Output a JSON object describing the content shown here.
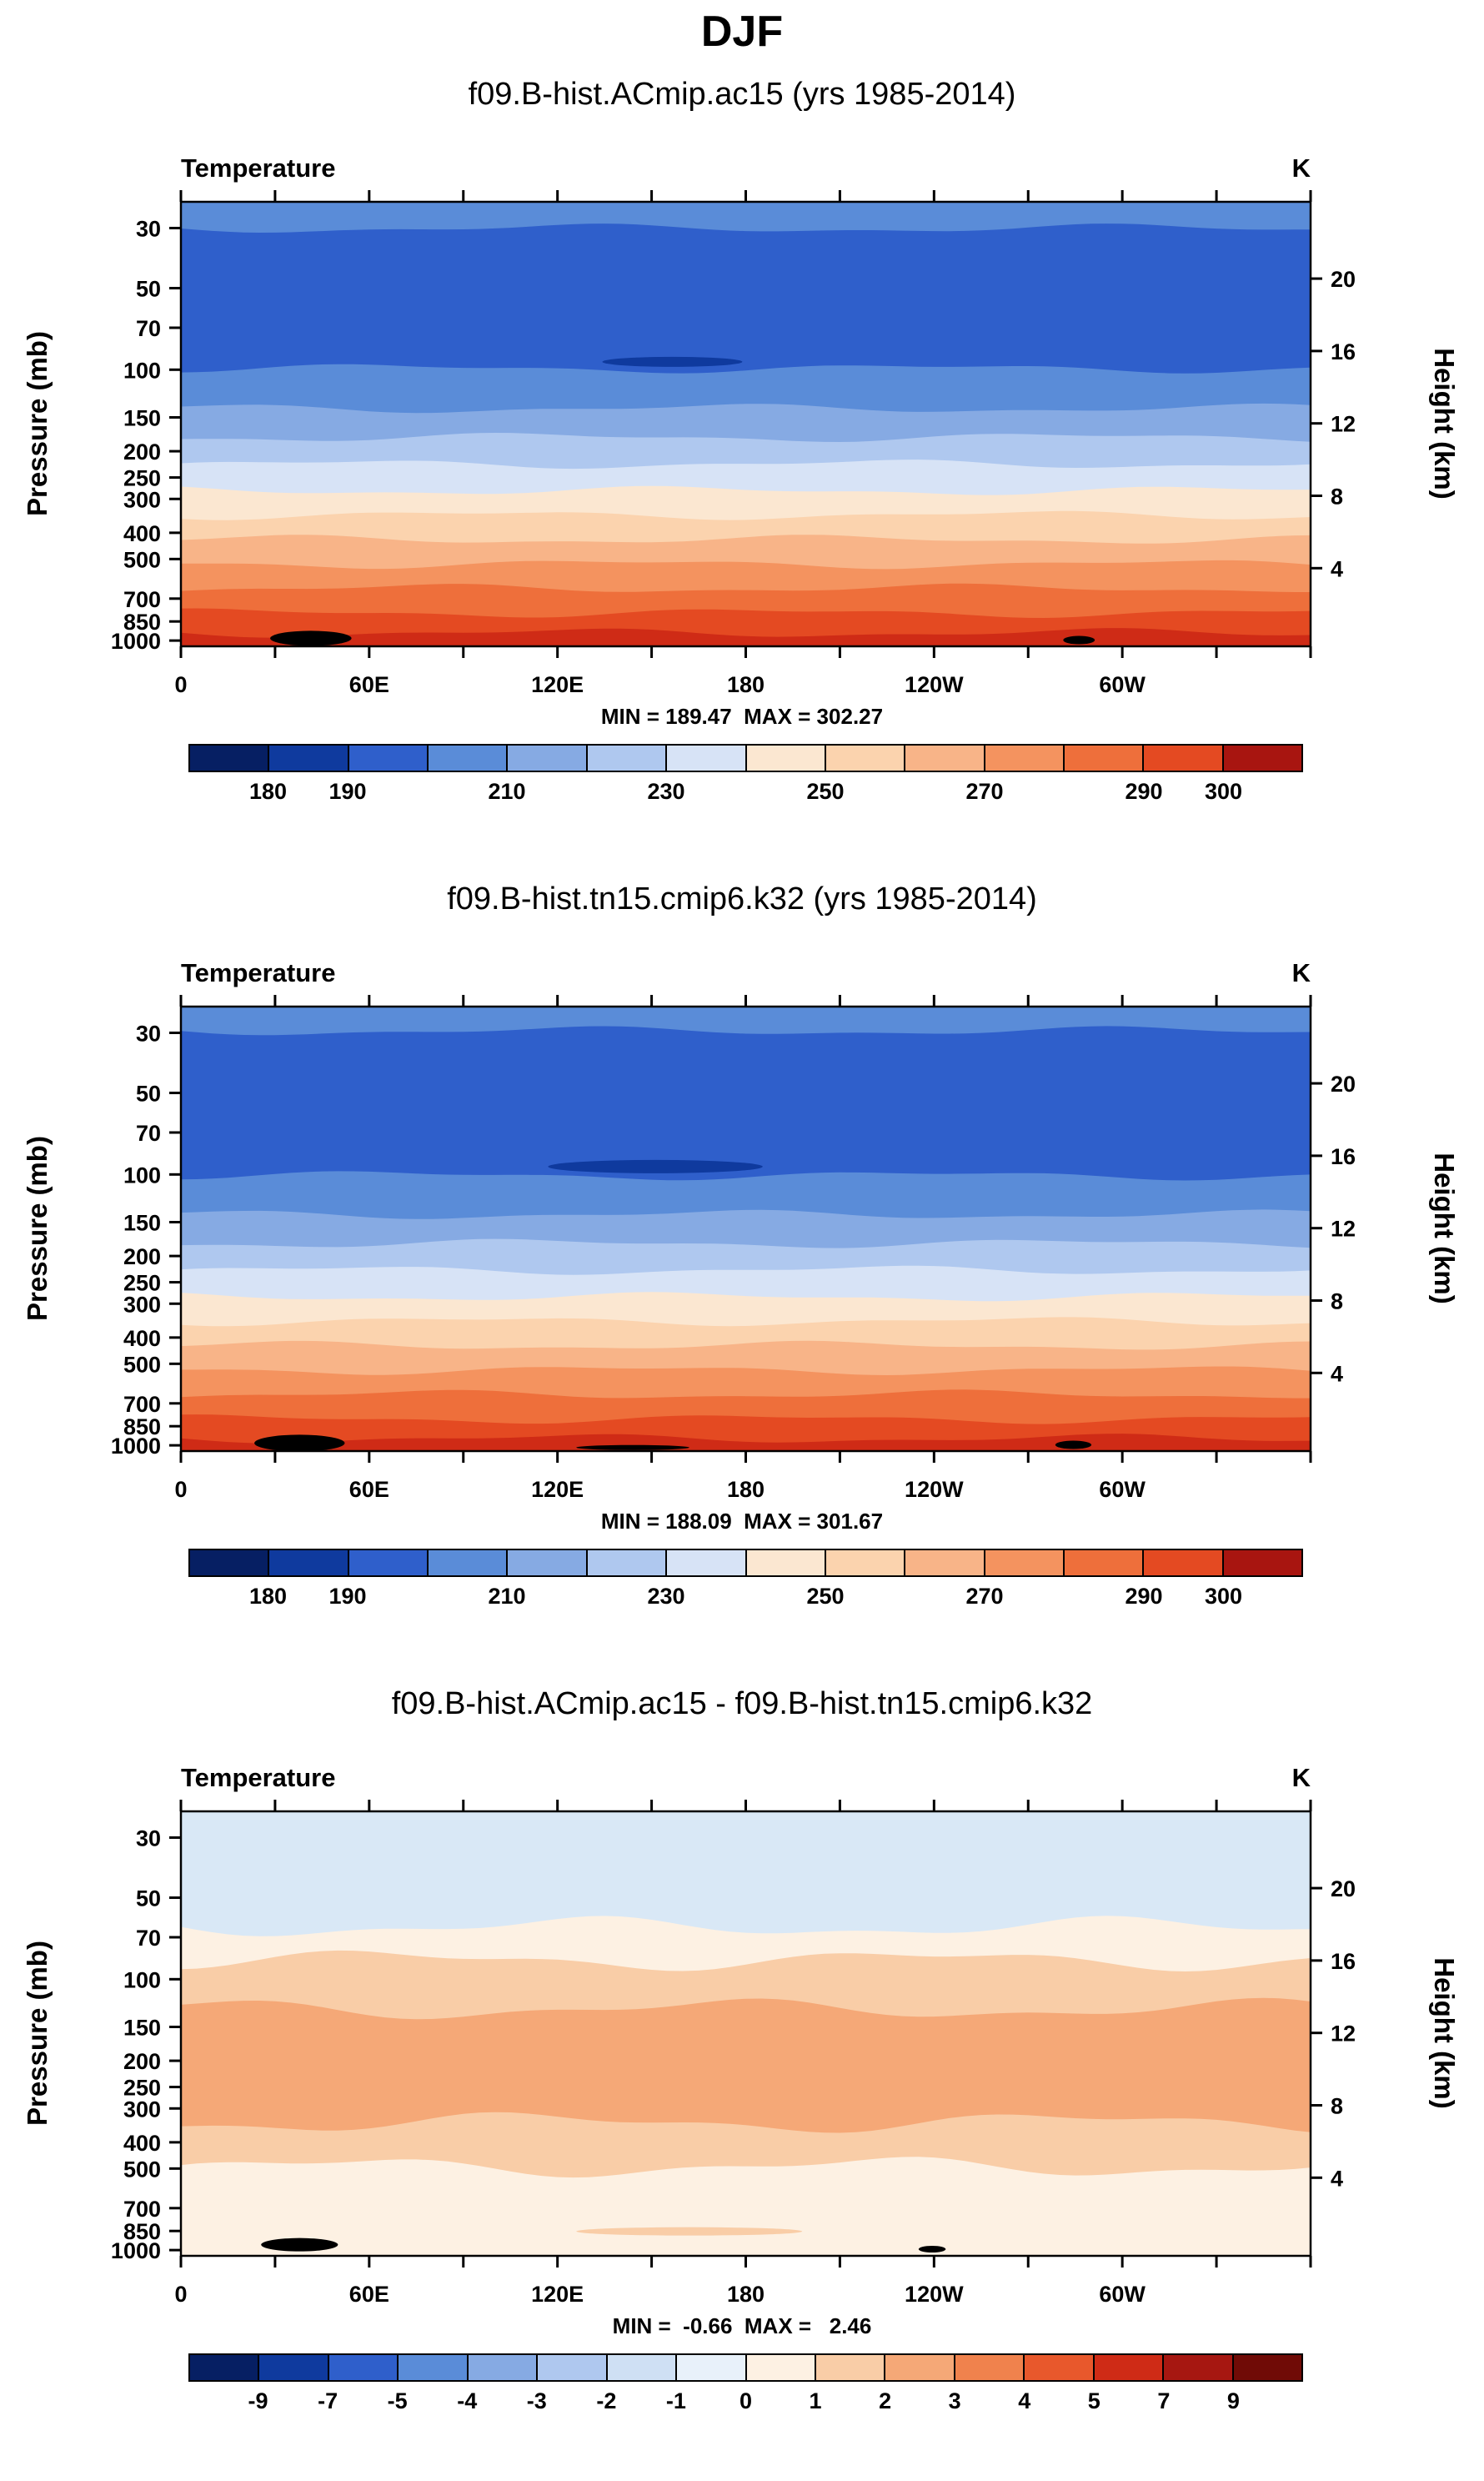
{
  "main_title": "DJF",
  "chart_data": [
    {
      "type": "heatmap",
      "title": "f09.B-hist.ACmip.ac15 (yrs 1985-2014)",
      "field_label": "Temperature",
      "units": "K",
      "stats": "MIN = 189.47  MAX = 302.27",
      "x_axis": {
        "tick_labels": [
          "0",
          "60E",
          "120E",
          "180",
          "120W",
          "60W"
        ],
        "minor_tick_count": 12
      },
      "left_axis": {
        "title": "Pressure (mb)",
        "ticks": [
          30,
          50,
          70,
          100,
          150,
          200,
          250,
          300,
          400,
          500,
          700,
          850,
          1000
        ],
        "top_value": 24,
        "bottom_value": 1050
      },
      "right_axis": {
        "title": "Height (km)",
        "ticks": [
          20,
          16,
          12,
          8,
          4
        ],
        "scale_height_km": 6.5
      },
      "colorbar": {
        "levels": [
          180,
          190,
          200,
          210,
          220,
          230,
          240,
          250,
          260,
          270,
          280,
          290,
          300
        ],
        "colors": [
          "#061f63",
          "#0f3a9e",
          "#2f5fcb",
          "#5a8cd8",
          "#86aae3",
          "#afc8ef",
          "#d7e3f6",
          "#fbe7d1",
          "#fbd3ae",
          "#f8b488",
          "#f4935f",
          "#ee6f3b",
          "#e44a22",
          "#a81510"
        ],
        "labels": [
          {
            "text": "180",
            "boundary": 1
          },
          {
            "text": "190",
            "boundary": 2
          },
          {
            "text": "210",
            "boundary": 4
          },
          {
            "text": "230",
            "boundary": 6
          },
          {
            "text": "250",
            "boundary": 8
          },
          {
            "text": "270",
            "boundary": 10
          },
          {
            "text": "290",
            "boundary": 12
          },
          {
            "text": "300",
            "boundary": 13
          }
        ]
      },
      "bands": [
        {
          "color": "#5a8cd8",
          "to": 0.06
        },
        {
          "color": "#2f5fcb",
          "to": 0.375
        },
        {
          "color": "#5a8cd8",
          "to": 0.465
        },
        {
          "color": "#86aae3",
          "to": 0.53
        },
        {
          "color": "#afc8ef",
          "to": 0.59
        },
        {
          "color": "#d7e3f6",
          "to": 0.65
        },
        {
          "color": "#fbe7d1",
          "to": 0.705
        },
        {
          "color": "#fbd3ae",
          "to": 0.76
        },
        {
          "color": "#f8b488",
          "to": 0.815
        },
        {
          "color": "#f4935f",
          "to": 0.87
        },
        {
          "color": "#ee6f3b",
          "to": 0.925
        },
        {
          "color": "#e44a22",
          "to": 0.97
        },
        {
          "color": "#cf2b16",
          "to": 1
        }
      ],
      "lenses": [
        {
          "color": "#0f3a9e",
          "x": 0.435,
          "y": 0.36,
          "rx": 0.062,
          "ry": 6
        }
      ],
      "blobs": [
        {
          "x": 0.115,
          "y": 0.982,
          "rx": 0.036,
          "ry": 9
        },
        {
          "x": 0.795,
          "y": 0.986,
          "rx": 0.014,
          "ry": 5
        }
      ],
      "wobble": 4
    },
    {
      "type": "heatmap",
      "title": "f09.B-hist.tn15.cmip6.k32 (yrs 1985-2014)",
      "field_label": "Temperature",
      "units": "K",
      "stats": "MIN = 188.09  MAX = 301.67",
      "x_axis": {
        "tick_labels": [
          "0",
          "60E",
          "120E",
          "180",
          "120W",
          "60W"
        ],
        "minor_tick_count": 12
      },
      "left_axis": {
        "title": "Pressure (mb)",
        "ticks": [
          30,
          50,
          70,
          100,
          150,
          200,
          250,
          300,
          400,
          500,
          700,
          850,
          1000
        ],
        "top_value": 24,
        "bottom_value": 1050
      },
      "right_axis": {
        "title": "Height (km)",
        "ticks": [
          20,
          16,
          12,
          8,
          4
        ],
        "scale_height_km": 6.5
      },
      "colorbar": {
        "levels": [
          180,
          190,
          200,
          210,
          220,
          230,
          240,
          250,
          260,
          270,
          280,
          290,
          300
        ],
        "colors": [
          "#061f63",
          "#0f3a9e",
          "#2f5fcb",
          "#5a8cd8",
          "#86aae3",
          "#afc8ef",
          "#d7e3f6",
          "#fbe7d1",
          "#fbd3ae",
          "#f8b488",
          "#f4935f",
          "#ee6f3b",
          "#e44a22",
          "#a81510"
        ],
        "labels": [
          {
            "text": "180",
            "boundary": 1
          },
          {
            "text": "190",
            "boundary": 2
          },
          {
            "text": "210",
            "boundary": 4
          },
          {
            "text": "230",
            "boundary": 6
          },
          {
            "text": "250",
            "boundary": 8
          },
          {
            "text": "270",
            "boundary": 10
          },
          {
            "text": "290",
            "boundary": 12
          },
          {
            "text": "300",
            "boundary": 13
          }
        ]
      },
      "bands": [
        {
          "color": "#5a8cd8",
          "to": 0.055
        },
        {
          "color": "#2f5fcb",
          "to": 0.38
        },
        {
          "color": "#5a8cd8",
          "to": 0.468
        },
        {
          "color": "#86aae3",
          "to": 0.533
        },
        {
          "color": "#afc8ef",
          "to": 0.593
        },
        {
          "color": "#d7e3f6",
          "to": 0.653
        },
        {
          "color": "#fbe7d1",
          "to": 0.708
        },
        {
          "color": "#fbd3ae",
          "to": 0.763
        },
        {
          "color": "#f8b488",
          "to": 0.818
        },
        {
          "color": "#f4935f",
          "to": 0.873
        },
        {
          "color": "#ee6f3b",
          "to": 0.928
        },
        {
          "color": "#e44a22",
          "to": 0.972
        },
        {
          "color": "#cf2b16",
          "to": 1
        }
      ],
      "lenses": [
        {
          "color": "#0f3a9e",
          "x": 0.42,
          "y": 0.36,
          "rx": 0.095,
          "ry": 8
        }
      ],
      "blobs": [
        {
          "x": 0.105,
          "y": 0.982,
          "rx": 0.04,
          "ry": 10
        },
        {
          "x": 0.79,
          "y": 0.986,
          "rx": 0.016,
          "ry": 5
        },
        {
          "x": 0.4,
          "y": 0.992,
          "rx": 0.05,
          "ry": 3
        }
      ],
      "wobble": 4
    },
    {
      "type": "heatmap",
      "title": "f09.B-hist.ACmip.ac15 - f09.B-hist.tn15.cmip6.k32",
      "field_label": "Temperature",
      "units": "K",
      "stats": "MIN =  -0.66  MAX =   2.46",
      "x_axis": {
        "tick_labels": [
          "0",
          "60E",
          "120E",
          "180",
          "120W",
          "60W"
        ],
        "minor_tick_count": 12
      },
      "left_axis": {
        "title": "Pressure (mb)",
        "ticks": [
          30,
          50,
          70,
          100,
          150,
          200,
          250,
          300,
          400,
          500,
          700,
          850,
          1000
        ],
        "top_value": 24,
        "bottom_value": 1050
      },
      "right_axis": {
        "title": "Height (km)",
        "ticks": [
          20,
          16,
          12,
          8,
          4
        ],
        "scale_height_km": 6.5
      },
      "colorbar": {
        "levels": [
          -9,
          -7,
          -5,
          -4,
          -3,
          -2,
          -1,
          0,
          1,
          2,
          3,
          4,
          5,
          7,
          9
        ],
        "colors": [
          "#061f63",
          "#0f3a9e",
          "#2f5fcb",
          "#5a8cd8",
          "#86aae3",
          "#afc8ef",
          "#cfe0f4",
          "#e8f1fa",
          "#fdf1e3",
          "#f9cda7",
          "#f5a877",
          "#f0824d",
          "#e8582c",
          "#cf2b16",
          "#a61711",
          "#700b06"
        ],
        "labels": [
          {
            "text": "-9",
            "boundary": 1
          },
          {
            "text": "-7",
            "boundary": 2
          },
          {
            "text": "-5",
            "boundary": 3
          },
          {
            "text": "-4",
            "boundary": 4
          },
          {
            "text": "-3",
            "boundary": 5
          },
          {
            "text": "-2",
            "boundary": 6
          },
          {
            "text": "-1",
            "boundary": 7
          },
          {
            "text": "0",
            "boundary": 8
          },
          {
            "text": "1",
            "boundary": 9
          },
          {
            "text": "2",
            "boundary": 10
          },
          {
            "text": "3",
            "boundary": 11
          },
          {
            "text": "4",
            "boundary": 12
          },
          {
            "text": "5",
            "boundary": 13
          },
          {
            "text": "7",
            "boundary": 14
          },
          {
            "text": "9",
            "boundary": 15
          }
        ]
      },
      "bands": [
        {
          "color": "#d9e8f6",
          "to": 0.26
        },
        {
          "color": "#fdf1e3",
          "to": 0.335
        },
        {
          "color": "#f9cda7",
          "to": 0.445
        },
        {
          "color": "#f5a877",
          "to": 0.7
        },
        {
          "color": "#f9cda7",
          "to": 0.8
        },
        {
          "color": "#fdf1e3",
          "to": 1
        }
      ],
      "lenses": [
        {
          "color": "#f9cda7",
          "x": 0.45,
          "y": 0.945,
          "rx": 0.1,
          "ry": 5
        }
      ],
      "blobs": [
        {
          "x": 0.105,
          "y": 0.975,
          "rx": 0.034,
          "ry": 8
        },
        {
          "x": 0.665,
          "y": 0.985,
          "rx": 0.012,
          "ry": 4
        }
      ],
      "wobble": 9
    }
  ]
}
